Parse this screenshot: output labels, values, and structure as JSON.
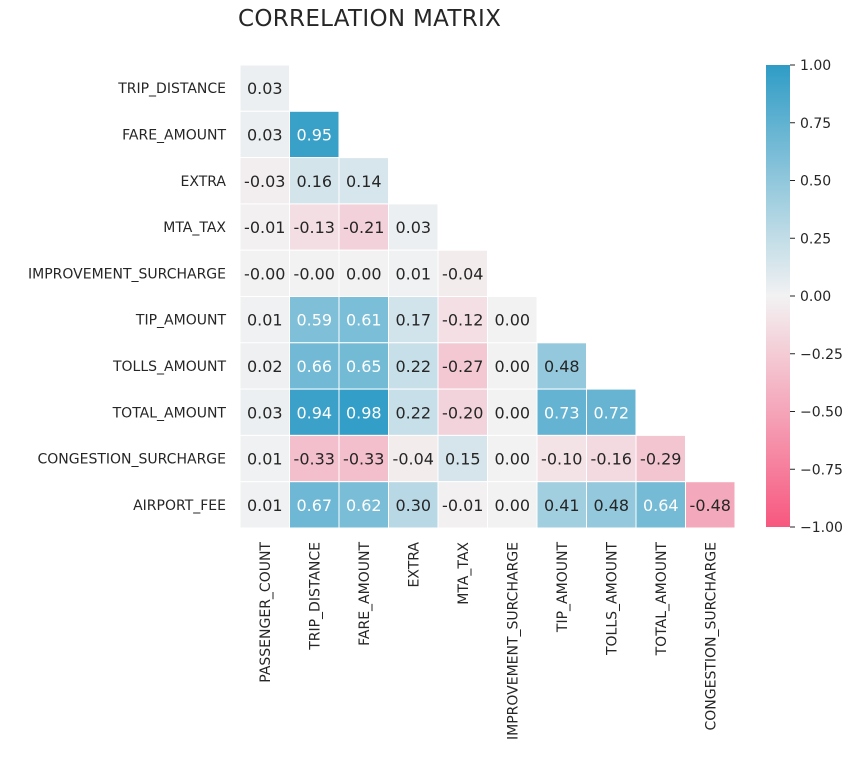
{
  "chart_data": {
    "type": "heatmap",
    "title": "CORRELATION MATRIX",
    "x_labels": [
      "PASSENGER_COUNT",
      "TRIP_DISTANCE",
      "FARE_AMOUNT",
      "EXTRA",
      "MTA_TAX",
      "IMPROVEMENT_SURCHARGE",
      "TIP_AMOUNT",
      "TOLLS_AMOUNT",
      "TOTAL_AMOUNT",
      "CONGESTION_SURCHARGE"
    ],
    "y_labels": [
      "TRIP_DISTANCE",
      "FARE_AMOUNT",
      "EXTRA",
      "MTA_TAX",
      "IMPROVEMENT_SURCHARGE",
      "TIP_AMOUNT",
      "TOLLS_AMOUNT",
      "TOTAL_AMOUNT",
      "CONGESTION_SURCHARGE",
      "AIRPORT_FEE"
    ],
    "values": [
      [
        "0.03"
      ],
      [
        "0.03",
        "0.95"
      ],
      [
        "-0.03",
        "0.16",
        "0.14"
      ],
      [
        "-0.01",
        "-0.13",
        "-0.21",
        "0.03"
      ],
      [
        "-0.00",
        "-0.00",
        "0.00",
        "0.01",
        "-0.04"
      ],
      [
        "0.01",
        "0.59",
        "0.61",
        "0.17",
        "-0.12",
        "0.00"
      ],
      [
        "0.02",
        "0.66",
        "0.65",
        "0.22",
        "-0.27",
        "0.00",
        "0.48"
      ],
      [
        "0.03",
        "0.94",
        "0.98",
        "0.22",
        "-0.20",
        "0.00",
        "0.73",
        "0.72"
      ],
      [
        "0.01",
        "-0.33",
        "-0.33",
        "-0.04",
        "0.15",
        "0.00",
        "-0.10",
        "-0.16",
        "-0.29"
      ],
      [
        "0.01",
        "0.67",
        "0.62",
        "0.30",
        "-0.01",
        "0.00",
        "0.41",
        "0.48",
        "0.64",
        "-0.48"
      ]
    ],
    "mask": "upper-triangle",
    "vmin": -1.0,
    "vmax": 1.0,
    "colorbar": {
      "ticks": [
        "1.00",
        "0.75",
        "0.50",
        "0.25",
        "0.00",
        "−0.25",
        "−0.50",
        "−0.75",
        "−1.00"
      ],
      "tick_values": [
        1.0,
        0.75,
        0.5,
        0.25,
        0.0,
        -0.25,
        -0.5,
        -0.75,
        -1.0
      ]
    },
    "colormap": {
      "negative": "#f7577f",
      "center": "#f2f2f2",
      "positive": "#2f9cc6"
    },
    "annotation_colors": {
      "dark": "#262626",
      "light": "#ffffff"
    }
  }
}
